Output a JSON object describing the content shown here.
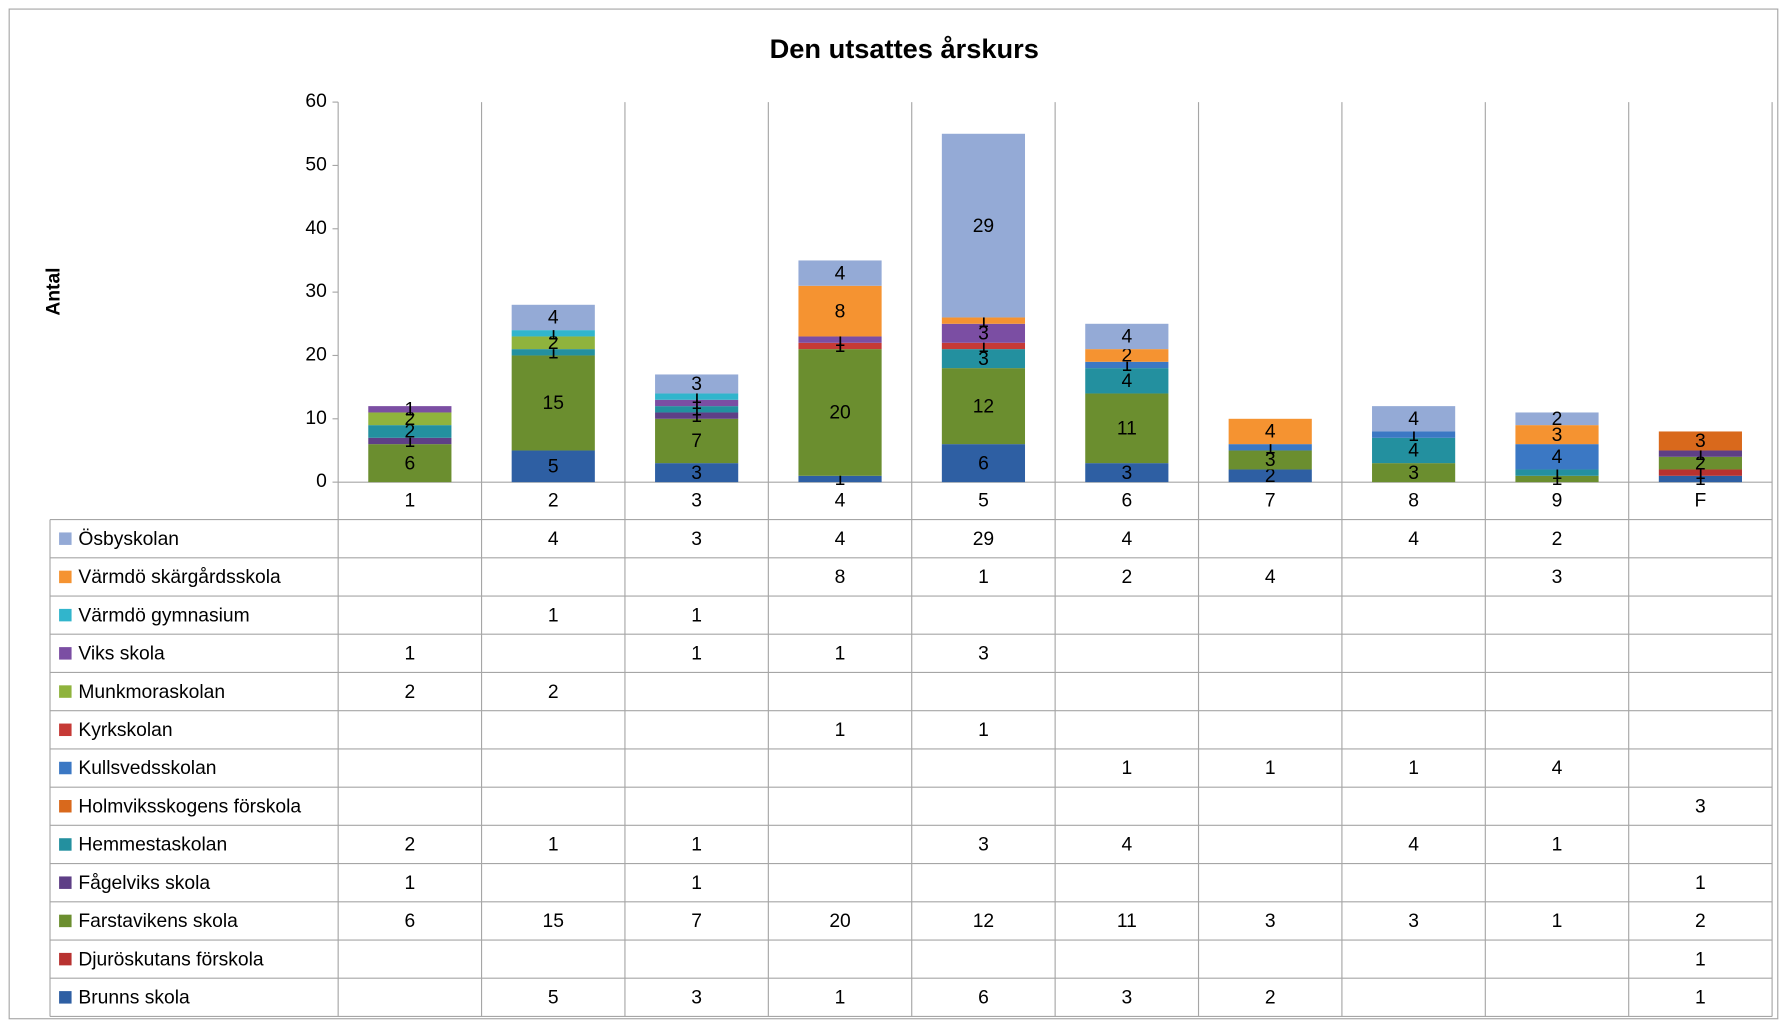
{
  "chart_data": {
    "type": "stacked_bar",
    "title": "Den utsattes årskurs",
    "y_label": "Antal",
    "categories": [
      "1",
      "2",
      "3",
      "4",
      "5",
      "6",
      "7",
      "8",
      "9",
      "F"
    ],
    "ylim": [
      0,
      60
    ],
    "yticks": [
      0,
      10,
      20,
      30,
      40,
      50,
      60
    ],
    "series": [
      {
        "name": "Brunns skola",
        "color": "#2e5fa3",
        "values": [
          null,
          5,
          3,
          1,
          6,
          3,
          2,
          null,
          null,
          1
        ]
      },
      {
        "name": "Djuröskutans förskola",
        "color": "#b83230",
        "values": [
          null,
          null,
          null,
          null,
          null,
          null,
          null,
          null,
          null,
          1
        ]
      },
      {
        "name": "Farstavikens skola",
        "color": "#6b8e2f",
        "values": [
          6,
          15,
          7,
          20,
          12,
          11,
          3,
          3,
          1,
          2
        ]
      },
      {
        "name": "Fågelviks skola",
        "color": "#5e3f86",
        "values": [
          1,
          null,
          1,
          null,
          null,
          null,
          null,
          null,
          null,
          1
        ]
      },
      {
        "name": "Hemmestaskolan",
        "color": "#23909f",
        "values": [
          2,
          1,
          1,
          null,
          3,
          4,
          null,
          4,
          1,
          null
        ]
      },
      {
        "name": "Holmviksskogens förskola",
        "color": "#d9691c",
        "values": [
          null,
          null,
          null,
          null,
          null,
          null,
          null,
          null,
          null,
          3
        ]
      },
      {
        "name": "Kullsvedsskolan",
        "color": "#3b78c4",
        "values": [
          null,
          null,
          null,
          null,
          null,
          1,
          1,
          1,
          4,
          null
        ]
      },
      {
        "name": "Kyrkskolan",
        "color": "#c63a36",
        "values": [
          null,
          null,
          null,
          1,
          1,
          null,
          null,
          null,
          null,
          null
        ]
      },
      {
        "name": "Munkmoraskolan",
        "color": "#8fb33d",
        "values": [
          2,
          2,
          null,
          null,
          null,
          null,
          null,
          null,
          null,
          null
        ]
      },
      {
        "name": "Viks skola",
        "color": "#7b4ea3",
        "values": [
          1,
          null,
          1,
          1,
          3,
          null,
          null,
          null,
          null,
          null
        ]
      },
      {
        "name": "Värmdö gymnasium",
        "color": "#31b5cc",
        "values": [
          null,
          1,
          1,
          null,
          null,
          null,
          null,
          null,
          null,
          null
        ]
      },
      {
        "name": "Värmdö skärgårdsskola",
        "color": "#f59331",
        "values": [
          null,
          null,
          null,
          8,
          1,
          2,
          4,
          null,
          3,
          null
        ]
      },
      {
        "name": "Ösbyskolan",
        "color": "#94aad6",
        "values": [
          null,
          4,
          3,
          4,
          29,
          4,
          null,
          4,
          2,
          null
        ]
      }
    ]
  }
}
